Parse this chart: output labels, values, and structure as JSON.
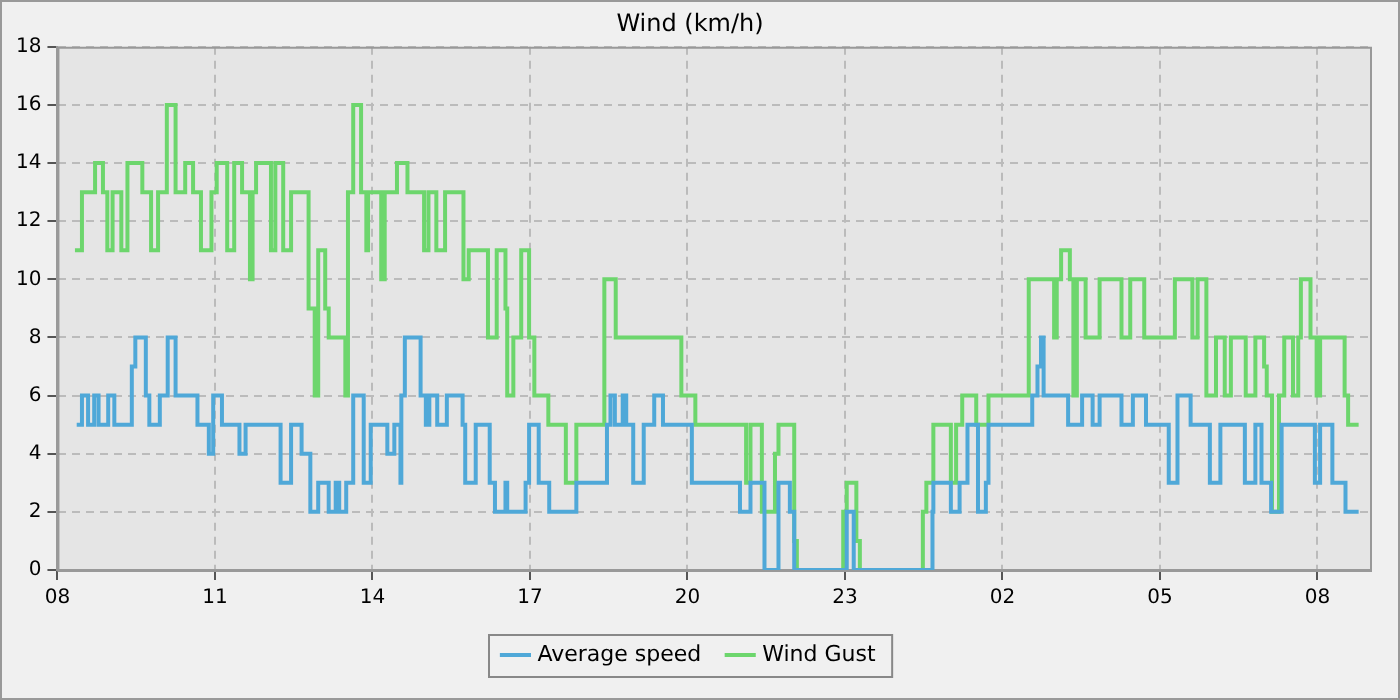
{
  "chart_data": {
    "type": "step",
    "title": "Wind (km/h)",
    "xlim": [
      "--01-01T08:00",
      "--01-02T09:00"
    ],
    "xticks": [
      {
        "value": "--01-01T08:00",
        "label": "08"
      },
      {
        "value": "--01-01T11:00",
        "label": "11"
      },
      {
        "value": "--01-01T14:00",
        "label": "14"
      },
      {
        "value": "--01-01T17:00",
        "label": "17"
      },
      {
        "value": "--01-01T20:00",
        "label": "20"
      },
      {
        "value": "--01-01T23:00",
        "label": "23"
      },
      {
        "value": "--01-02T02:00",
        "label": "02"
      },
      {
        "value": "--01-02T05:00",
        "label": "05"
      },
      {
        "value": "--01-02T08:00",
        "label": "08"
      }
    ],
    "ylim": [
      0,
      18
    ],
    "yticks": [
      0,
      2,
      4,
      6,
      8,
      10,
      12,
      14,
      16,
      18
    ],
    "grid": true,
    "legend": "bottom",
    "series": [
      {
        "name": "Average speed",
        "color": "#4fa8d8",
        "x": [
          "--01-01T08:22",
          "--01-01T08:28",
          "--01-01T08:35",
          "--01-01T08:42",
          "--01-01T08:47",
          "--01-01T08:58",
          "--01-01T09:05",
          "--01-01T09:25",
          "--01-01T09:29",
          "--01-01T09:41",
          "--01-01T09:45",
          "--01-01T09:57",
          "--01-01T10:06",
          "--01-01T10:15",
          "--01-01T10:40",
          "--01-01T10:53",
          "--01-01T10:58",
          "--01-01T11:08",
          "--01-01T11:28",
          "--01-01T11:35",
          "--01-01T12:15",
          "--01-01T12:27",
          "--01-01T12:39",
          "--01-01T12:49",
          "--01-01T12:58",
          "--01-01T13:10",
          "--01-01T13:18",
          "--01-01T13:22",
          "--01-01T13:30",
          "--01-01T13:38",
          "--01-01T13:50",
          "--01-01T13:58",
          "--01-01T14:17",
          "--01-01T14:25",
          "--01-01T14:32",
          "--01-01T14:33",
          "--01-01T14:37",
          "--01-01T14:55",
          "--01-01T15:01",
          "--01-01T15:05",
          "--01-01T15:14",
          "--01-01T15:25",
          "--01-01T15:43",
          "--01-01T15:46",
          "--01-01T15:58",
          "--01-01T16:14",
          "--01-01T16:20",
          "--01-01T16:32",
          "--01-01T16:34",
          "--01-01T16:55",
          "--01-01T16:59",
          "--01-01T17:10",
          "--01-01T17:22",
          "--01-01T17:53",
          "--01-01T18:28",
          "--01-01T18:32",
          "--01-01T18:37",
          "--01-01T18:46",
          "--01-01T18:50",
          "--01-01T18:58",
          "--01-01T19:10",
          "--01-01T19:22",
          "--01-01T19:32",
          "--01-01T20:05",
          "--01-01T21:00",
          "--01-01T21:12",
          "--01-01T21:28",
          "--01-01T21:44",
          "--01-01T21:57",
          "--01-01T22:02",
          "--01-01T23:02",
          "--01-01T23:10",
          "--01-02T00:40",
          "--01-02T00:41",
          "--01-02T01:01",
          "--01-02T01:11",
          "--01-02T01:20",
          "--01-02T01:32",
          "--01-02T01:41",
          "--01-02T01:44",
          "--01-02T02:34",
          "--01-02T02:40",
          "--01-02T02:44",
          "--01-02T02:47",
          "--01-02T03:15",
          "--01-02T03:31",
          "--01-02T03:43",
          "--01-02T03:51",
          "--01-02T04:16",
          "--01-02T04:29",
          "--01-02T04:44",
          "--01-02T05:10",
          "--01-02T05:20",
          "--01-02T05:35",
          "--01-02T05:57",
          "--01-02T06:09",
          "--01-02T06:37",
          "--01-02T06:49",
          "--01-02T06:56",
          "--01-02T07:07",
          "--01-02T07:19",
          "--01-02T07:57",
          "--01-02T08:03",
          "--01-02T08:17",
          "--01-02T08:32",
          "--01-02T08:47"
        ],
        "values": [
          5,
          6,
          5,
          6,
          5,
          6,
          5,
          7,
          8,
          6,
          5,
          6,
          8,
          6,
          5,
          4,
          6,
          5,
          4,
          5,
          3,
          5,
          4,
          2,
          3,
          2,
          3,
          2,
          3,
          6,
          3,
          5,
          4,
          5,
          3,
          6,
          8,
          6,
          5,
          6,
          5,
          6,
          5,
          3,
          5,
          3,
          2,
          3,
          2,
          3,
          5,
          3,
          2,
          3,
          5,
          6,
          5,
          6,
          5,
          3,
          5,
          6,
          5,
          3,
          2,
          3,
          0,
          3,
          2,
          0,
          2,
          0,
          2,
          3,
          2,
          3,
          5,
          2,
          3,
          5,
          6,
          7,
          8,
          6,
          5,
          6,
          5,
          6,
          5,
          6,
          5,
          3,
          6,
          5,
          3,
          5,
          3,
          5,
          3,
          2,
          5,
          3,
          5,
          3,
          2,
          2
        ]
      },
      {
        "name": "Wind Gust",
        "color": "#6dd66d",
        "x": [
          "--01-01T08:20",
          "--01-01T08:28",
          "--01-01T08:43",
          "--01-01T08:52",
          "--01-01T08:57",
          "--01-01T09:03",
          "--01-01T09:13",
          "--01-01T09:20",
          "--01-01T09:37",
          "--01-01T09:47",
          "--01-01T09:55",
          "--01-01T10:05",
          "--01-01T10:15",
          "--01-01T10:26",
          "--01-01T10:35",
          "--01-01T10:44",
          "--01-01T10:56",
          "--01-01T11:02",
          "--01-01T11:14",
          "--01-01T11:22",
          "--01-01T11:31",
          "--01-01T11:40",
          "--01-01T11:43",
          "--01-01T11:47",
          "--01-01T12:04",
          "--01-01T12:09",
          "--01-01T12:18",
          "--01-01T12:27",
          "--01-01T12:47",
          "--01-01T12:54",
          "--01-01T12:58",
          "--01-01T13:06",
          "--01-01T13:10",
          "--01-01T13:29",
          "--01-01T13:32",
          "--01-01T13:38",
          "--01-01T13:47",
          "--01-01T13:53",
          "--01-01T13:55",
          "--01-01T14:10",
          "--01-01T14:14",
          "--01-01T14:28",
          "--01-01T14:40",
          "--01-01T14:59",
          "--01-01T15:04",
          "--01-01T15:13",
          "--01-01T15:23",
          "--01-01T15:44",
          "--01-01T15:50",
          "--01-01T16:12",
          "--01-01T16:22",
          "--01-01T16:32",
          "--01-01T16:34",
          "--01-01T16:41",
          "--01-01T16:50",
          "--01-01T16:59",
          "--01-01T17:05",
          "--01-01T17:21",
          "--01-01T17:41",
          "--01-01T17:53",
          "--01-01T18:25",
          "--01-01T18:38",
          "--01-01T19:53",
          "--01-01T20:09",
          "--01-01T21:07",
          "--01-01T21:12",
          "--01-01T21:25",
          "--01-01T21:40",
          "--01-01T21:44",
          "--01-01T22:02",
          "--01-01T22:05",
          "--01-01T22:58",
          "--01-01T23:02",
          "--01-01T23:13",
          "--01-01T23:17",
          "--01-02T00:29",
          "--01-02T00:33",
          "--01-02T00:41",
          "--01-02T01:01",
          "--01-02T01:07",
          "--01-02T01:14",
          "--01-02T01:30",
          "--01-02T01:44",
          "--01-02T02:30",
          "--01-02T02:59",
          "--01-02T03:02",
          "--01-02T03:07",
          "--01-02T03:17",
          "--01-02T03:21",
          "--01-02T03:25",
          "--01-02T03:35",
          "--01-02T03:51",
          "--01-02T04:16",
          "--01-02T04:26",
          "--01-02T04:42",
          "--01-02T05:17",
          "--01-02T05:37",
          "--01-02T05:43",
          "--01-02T05:53",
          "--01-02T06:04",
          "--01-02T06:14",
          "--01-02T06:21",
          "--01-02T06:38",
          "--01-02T06:49",
          "--01-02T06:59",
          "--01-02T07:02",
          "--01-02T07:08",
          "--01-02T07:16",
          "--01-02T07:22",
          "--01-02T07:32",
          "--01-02T07:38",
          "--01-02T07:41",
          "--01-02T07:52",
          "--01-02T07:59",
          "--01-02T08:03",
          "--01-02T08:31",
          "--01-02T08:35",
          "--01-02T08:47"
        ],
        "values": [
          11,
          13,
          14,
          13,
          11,
          13,
          11,
          14,
          13,
          11,
          13,
          16,
          13,
          14,
          13,
          11,
          13,
          14,
          11,
          14,
          13,
          10,
          13,
          14,
          11,
          14,
          11,
          13,
          9,
          6,
          11,
          9,
          8,
          6,
          13,
          16,
          13,
          11,
          13,
          10,
          13,
          14,
          13,
          11,
          13,
          11,
          13,
          10,
          11,
          8,
          11,
          9,
          6,
          8,
          11,
          8,
          6,
          5,
          3,
          5,
          10,
          8,
          6,
          5,
          3,
          5,
          2,
          4,
          5,
          1,
          0,
          2,
          3,
          1,
          0,
          2,
          3,
          5,
          3,
          5,
          6,
          5,
          6,
          10,
          8,
          10,
          11,
          10,
          6,
          10,
          8,
          10,
          8,
          10,
          8,
          10,
          8,
          10,
          6,
          8,
          6,
          8,
          6,
          8,
          7,
          6,
          2,
          6,
          8,
          6,
          8,
          10,
          8,
          6,
          8,
          6,
          5,
          5
        ]
      }
    ]
  }
}
